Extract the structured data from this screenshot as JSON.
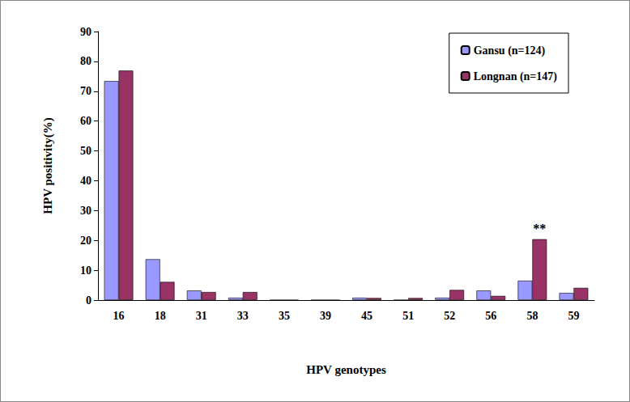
{
  "chart_data": {
    "type": "bar",
    "x_label": "HPV genotypes",
    "y_label": "HPV positivity(%)",
    "categories": [
      "16",
      "18",
      "31",
      "33",
      "35",
      "39",
      "45",
      "51",
      "52",
      "56",
      "58",
      "59"
    ],
    "series": [
      {
        "name": "Gansu (n=124)",
        "color": "#9999ff",
        "values": [
          73.4,
          13.7,
          3.2,
          0.8,
          0,
          0,
          0.8,
          0,
          0.8,
          3.2,
          6.5,
          2.4
        ]
      },
      {
        "name": "Longnan (n=147)",
        "color": "#993366",
        "values": [
          76.9,
          6.1,
          2.7,
          2.7,
          0,
          0,
          0.7,
          0.7,
          3.4,
          1.4,
          20.4,
          4.1
        ]
      }
    ],
    "annotations": [
      {
        "text": "**",
        "x": "58",
        "series": "Longnan (n=147)"
      }
    ],
    "ylim": [
      0,
      90
    ],
    "yticks": [
      0,
      10,
      20,
      30,
      40,
      50,
      60,
      70,
      80,
      90
    ],
    "grid": false,
    "legend": "top-right"
  }
}
